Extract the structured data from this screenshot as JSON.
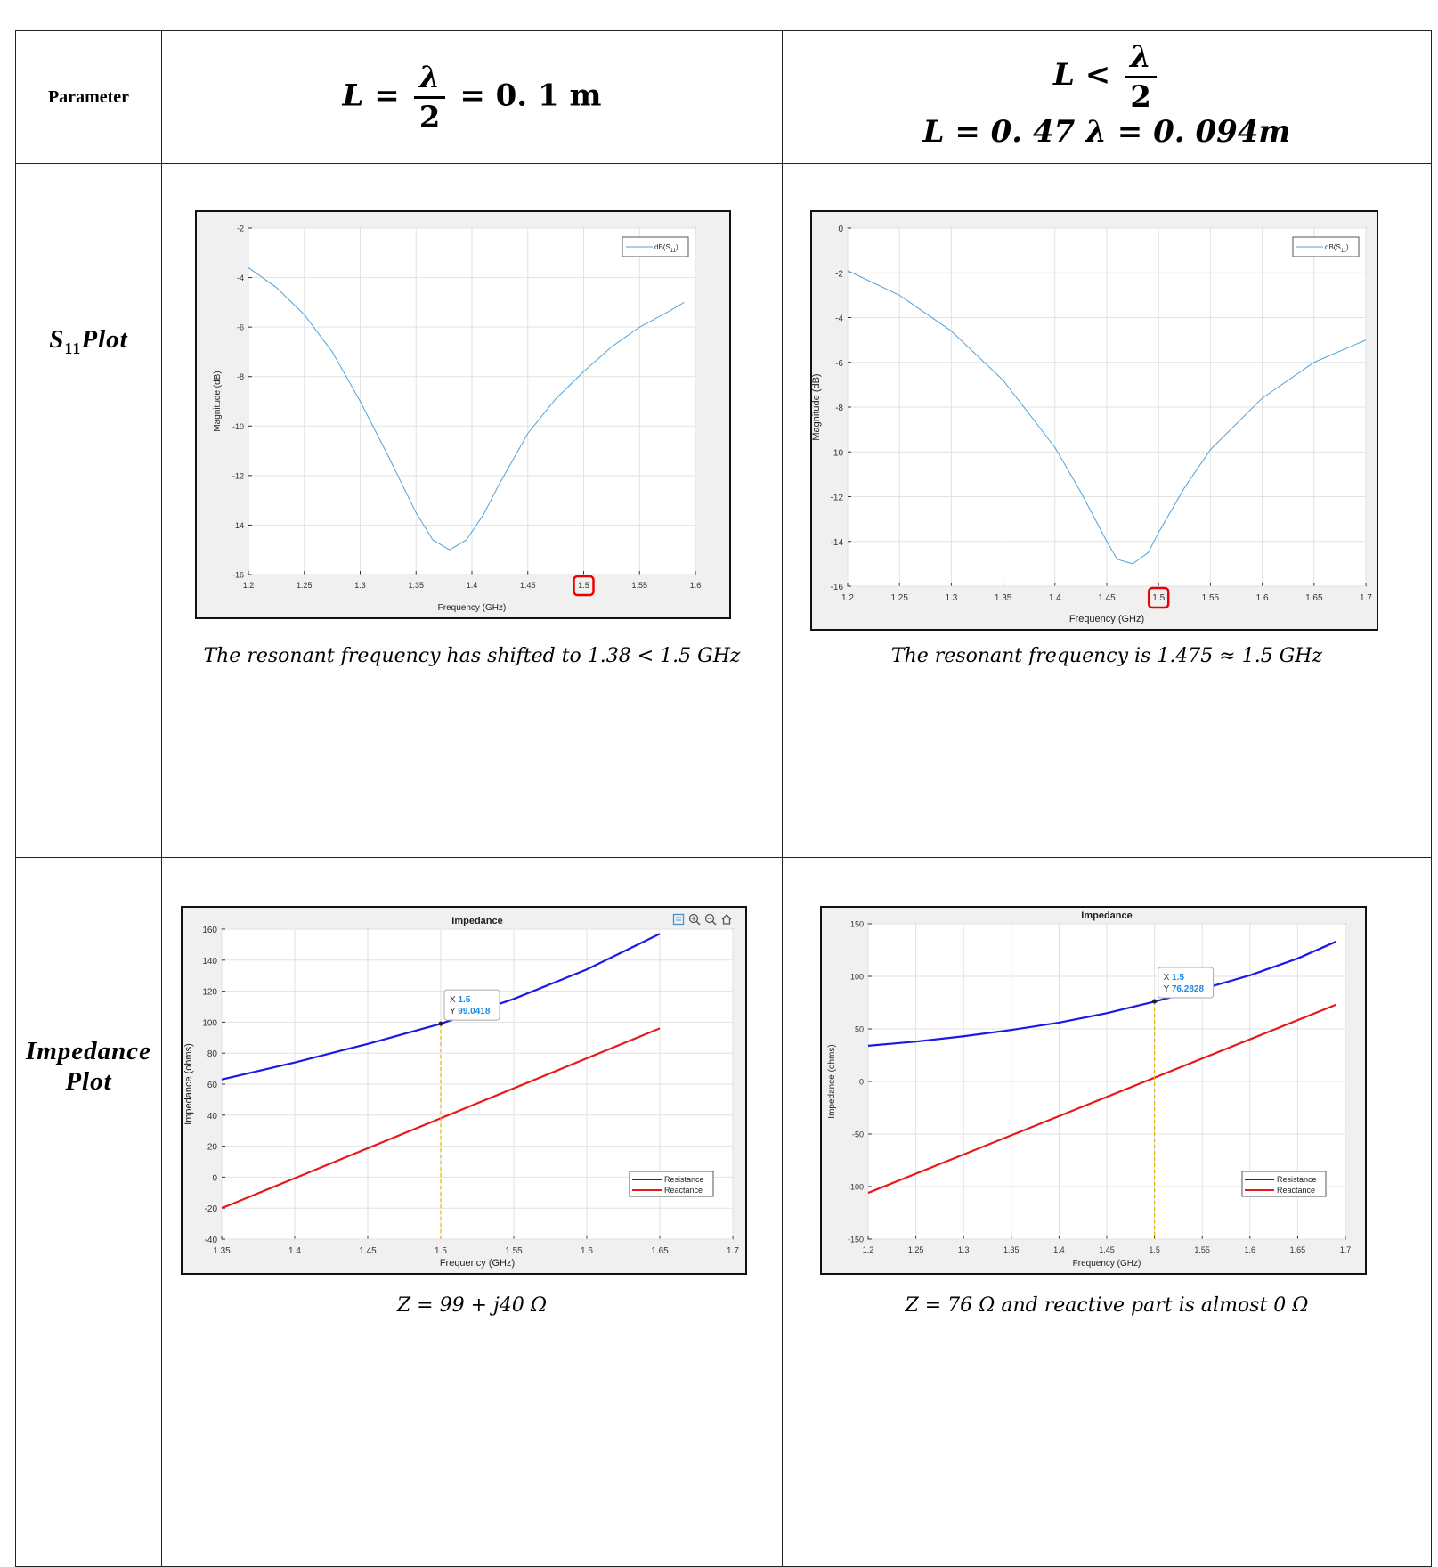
{
  "header": {
    "parameter": "Parameter",
    "col1_formula": "L = λ/2 = 0.1 m",
    "col1_lhs": "L =",
    "col1_num": "λ",
    "col1_den": "2",
    "col1_rhs": "= 0. 1 m",
    "col2_line1_lhs": "L <",
    "col2_num": "λ",
    "col2_den": "2",
    "col2_line2": "L = 0. 47 λ = 0. 094m"
  },
  "rows": {
    "s11_label_main": "S",
    "s11_label_sub": "11",
    "s11_label_rest": "Plot",
    "impedance_label_line1": "Impedance",
    "impedance_label_line2": "Plot"
  },
  "captions": {
    "s11_left": "The resonant frequency has shifted to 1.38 < 1.5 GHz",
    "s11_right": "The resonant frequency is 1.475 ≈ 1.5 GHz",
    "imp_left": "Z = 99 + j40 Ω",
    "imp_right": "Z = 76 Ω and reactive part is almost 0 Ω"
  },
  "icons": [
    "legend-toggle-icon",
    "zoom-in-icon",
    "zoom-out-icon",
    "home-icon"
  ],
  "chart_data": [
    {
      "id": "s11_left",
      "type": "line",
      "title": "",
      "xlabel": "Frequency (GHz)",
      "ylabel": "Magnitude (dB)",
      "xlim": [
        1.2,
        1.6
      ],
      "ylim": [
        -16,
        -2
      ],
      "xticks": [
        1.2,
        1.25,
        1.3,
        1.35,
        1.4,
        1.45,
        1.5,
        1.55,
        1.6
      ],
      "yticks": [
        -16,
        -14,
        -12,
        -10,
        -8,
        -6,
        -4,
        -2
      ],
      "grid": true,
      "legend": "top-right",
      "highlight_tick": 1.5,
      "series": [
        {
          "name": "dB(S11)",
          "color": "#4fa3d8",
          "x": [
            1.2,
            1.225,
            1.25,
            1.275,
            1.3,
            1.325,
            1.35,
            1.365,
            1.38,
            1.395,
            1.41,
            1.425,
            1.45,
            1.475,
            1.5,
            1.525,
            1.55,
            1.575,
            1.59
          ],
          "y": [
            -3.6,
            -4.4,
            -5.5,
            -7.0,
            -9.0,
            -11.2,
            -13.5,
            -14.6,
            -15.0,
            -14.6,
            -13.6,
            -12.3,
            -10.3,
            -8.9,
            -7.8,
            -6.8,
            -6.0,
            -5.4,
            -5.0
          ]
        }
      ]
    },
    {
      "id": "s11_right",
      "type": "line",
      "title": "",
      "xlabel": "Frequency (GHz)",
      "ylabel": "Magnitude (dB)",
      "xlim": [
        1.2,
        1.7
      ],
      "ylim": [
        -16,
        0
      ],
      "xticks": [
        1.2,
        1.25,
        1.3,
        1.35,
        1.4,
        1.45,
        1.5,
        1.55,
        1.6,
        1.65,
        1.7
      ],
      "yticks": [
        -16,
        -14,
        -12,
        -10,
        -8,
        -6,
        -4,
        -2,
        0
      ],
      "grid": true,
      "legend": "top-right",
      "highlight_tick": 1.5,
      "series": [
        {
          "name": "dB(S11)",
          "color": "#4fa3d8",
          "x": [
            1.2,
            1.25,
            1.3,
            1.35,
            1.4,
            1.425,
            1.45,
            1.46,
            1.475,
            1.49,
            1.5,
            1.525,
            1.55,
            1.6,
            1.65,
            1.7
          ],
          "y": [
            -1.9,
            -3.0,
            -4.6,
            -6.8,
            -9.8,
            -11.8,
            -14.0,
            -14.8,
            -15.0,
            -14.5,
            -13.6,
            -11.6,
            -9.9,
            -7.6,
            -6.0,
            -5.0
          ]
        }
      ]
    },
    {
      "id": "impedance_left",
      "type": "line",
      "title": "Impedance",
      "xlabel": "Frequency (GHz)",
      "ylabel": "Impedance (ohms)",
      "xlim": [
        1.35,
        1.7
      ],
      "ylim": [
        -40,
        160
      ],
      "xticks": [
        1.35,
        1.4,
        1.45,
        1.5,
        1.55,
        1.6,
        1.65,
        1.7
      ],
      "yticks": [
        -40,
        -20,
        0,
        20,
        40,
        60,
        80,
        100,
        120,
        140,
        160
      ],
      "grid": true,
      "legend": "bottom-right",
      "datatip": {
        "x": 1.5,
        "y": 99.0418,
        "x_label": "X",
        "y_label": "Y",
        "x_text": "1.5",
        "y_text": "99.0418"
      },
      "series": [
        {
          "name": "Resistance",
          "color": "#1a1ae6",
          "x": [
            1.35,
            1.4,
            1.45,
            1.5,
            1.55,
            1.6,
            1.65
          ],
          "y": [
            63,
            74,
            86,
            99,
            115,
            134,
            157
          ]
        },
        {
          "name": "Reactance",
          "color": "#e61a1a",
          "x": [
            1.35,
            1.65
          ],
          "y": [
            -20,
            96
          ]
        }
      ]
    },
    {
      "id": "impedance_right",
      "type": "line",
      "title": "Impedance",
      "xlabel": "Frequency (GHz)",
      "ylabel": "Impedance (ohms)",
      "xlim": [
        1.2,
        1.7
      ],
      "ylim": [
        -150,
        150
      ],
      "xticks": [
        1.2,
        1.25,
        1.3,
        1.35,
        1.4,
        1.45,
        1.5,
        1.55,
        1.6,
        1.65,
        1.7
      ],
      "yticks": [
        -150,
        -100,
        -50,
        0,
        50,
        100,
        150
      ],
      "grid": true,
      "legend": "bottom-right",
      "datatip": {
        "x": 1.5,
        "y": 76.2828,
        "x_label": "X",
        "y_label": "Y",
        "x_text": "1.5",
        "y_text": "76.2828"
      },
      "series": [
        {
          "name": "Resistance",
          "color": "#1a1ae6",
          "x": [
            1.2,
            1.25,
            1.3,
            1.35,
            1.4,
            1.45,
            1.5,
            1.55,
            1.6,
            1.65,
            1.69
          ],
          "y": [
            34,
            38,
            43,
            49,
            56,
            65,
            76,
            88,
            101,
            117,
            133
          ]
        },
        {
          "name": "Reactance",
          "color": "#e61a1a",
          "x": [
            1.2,
            1.69
          ],
          "y": [
            -106,
            73
          ]
        }
      ]
    }
  ]
}
